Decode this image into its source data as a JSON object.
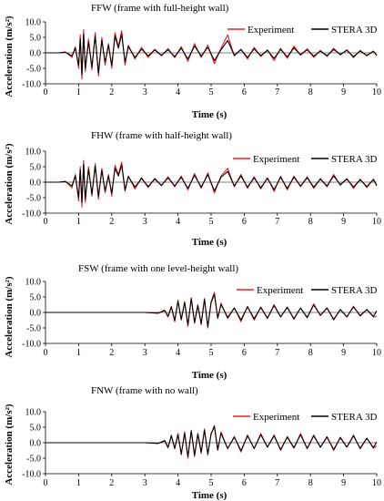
{
  "colors": {
    "experiment": "#e8202a",
    "stera": "#000000"
  },
  "chart_data": [
    {
      "type": "line",
      "title": "FFW (frame with full-height wall)",
      "xlabel": "Time (s)",
      "ylabel": "Acceleration (m/s²)",
      "xlim": [
        0,
        10
      ],
      "ylim": [
        -10,
        10
      ],
      "xticks": [
        "0",
        "1",
        "2",
        "3",
        "4",
        "5",
        "6",
        "7",
        "8",
        "9",
        "10"
      ],
      "yticks": [
        "10.0",
        "5.0",
        "0.0",
        "-5.0",
        "-10.0"
      ],
      "legend": {
        "position": "top-right"
      },
      "series": [
        {
          "name": "Experiment",
          "color": "#e8202a",
          "x": [
            0,
            0.4,
            0.6,
            0.8,
            0.9,
            1.0,
            1.05,
            1.1,
            1.15,
            1.2,
            1.3,
            1.4,
            1.5,
            1.6,
            1.7,
            1.8,
            1.9,
            2.0,
            2.1,
            2.2,
            2.3,
            2.4,
            2.5,
            2.7,
            2.9,
            3.1,
            3.3,
            3.5,
            3.7,
            3.9,
            4.1,
            4.3,
            4.5,
            4.7,
            4.9,
            5.1,
            5.3,
            5.5,
            5.7,
            5.9,
            6.1,
            6.3,
            6.5,
            6.7,
            6.9,
            7.1,
            7.3,
            7.5,
            7.7,
            7.9,
            8.1,
            8.3,
            8.5,
            8.7,
            8.9,
            9.1,
            9.3,
            9.5,
            9.7,
            9.9,
            10
          ],
          "y": [
            0,
            0,
            0.3,
            -1.5,
            2.0,
            -5.0,
            5.8,
            -8.5,
            7.5,
            -6.0,
            4.5,
            -5.5,
            6.5,
            -7.5,
            5.0,
            -4.0,
            3.0,
            -5.0,
            6.5,
            2.0,
            7.2,
            -4.0,
            2.5,
            -2.0,
            1.8,
            -1.5,
            1.2,
            -1.0,
            1.4,
            -1.6,
            2.0,
            -2.8,
            3.0,
            -1.5,
            2.5,
            -3.5,
            1.5,
            5.8,
            -1.0,
            1.2,
            -2.0,
            1.8,
            -1.2,
            1.0,
            -2.5,
            1.5,
            -1.8,
            2.2,
            -0.8,
            1.3,
            -1.5,
            0.8,
            -1.2,
            1.5,
            -0.7,
            1.0,
            -1.6,
            0.8,
            -1.0,
            0.6,
            -1.0
          ]
        },
        {
          "name": "STERA 3D",
          "color": "#000000",
          "x": [
            0,
            0.4,
            0.6,
            0.8,
            0.9,
            1.0,
            1.05,
            1.1,
            1.15,
            1.2,
            1.3,
            1.4,
            1.5,
            1.6,
            1.7,
            1.8,
            1.9,
            2.0,
            2.1,
            2.2,
            2.3,
            2.4,
            2.5,
            2.7,
            2.9,
            3.1,
            3.3,
            3.5,
            3.7,
            3.9,
            4.1,
            4.3,
            4.5,
            4.7,
            4.9,
            5.1,
            5.3,
            5.5,
            5.7,
            5.9,
            6.1,
            6.3,
            6.5,
            6.7,
            6.9,
            7.1,
            7.3,
            7.5,
            7.7,
            7.9,
            8.1,
            8.3,
            8.5,
            8.7,
            8.9,
            9.1,
            9.3,
            9.5,
            9.7,
            9.9,
            10
          ],
          "y": [
            0,
            0,
            0.2,
            -1.0,
            1.5,
            -4.0,
            4.5,
            -7.0,
            6.0,
            -5.0,
            3.5,
            -4.5,
            5.5,
            -6.5,
            4.0,
            -3.0,
            2.5,
            -4.0,
            5.5,
            1.5,
            6.0,
            -3.0,
            2.0,
            -1.5,
            1.2,
            -1.0,
            0.9,
            -0.8,
            1.0,
            -1.2,
            1.5,
            -2.0,
            2.2,
            -1.0,
            1.8,
            -2.5,
            1.0,
            4.0,
            -0.8,
            1.0,
            -1.5,
            1.3,
            -0.9,
            0.8,
            -1.8,
            1.1,
            -1.3,
            1.6,
            -0.6,
            1.0,
            -1.1,
            0.6,
            -0.9,
            1.1,
            -0.5,
            0.8,
            -1.2,
            0.6,
            -0.8,
            0.5,
            -0.8
          ]
        }
      ]
    },
    {
      "type": "line",
      "title": "FHW (frame with half-height wall)",
      "xlabel": "Time (s)",
      "ylabel": "Acceleration (m/s²)",
      "xlim": [
        0,
        10
      ],
      "ylim": [
        -10,
        10
      ],
      "xticks": [
        "0",
        "1",
        "2",
        "3",
        "4",
        "5",
        "6",
        "7",
        "8",
        "9",
        "10"
      ],
      "yticks": [
        "10.0",
        "5.0",
        "0.0",
        "-5.0",
        "-10.0"
      ],
      "legend": {
        "position": "top-right"
      },
      "series": [
        {
          "name": "Experiment",
          "color": "#e8202a",
          "x": [
            0,
            0.4,
            0.6,
            0.8,
            0.9,
            1.0,
            1.05,
            1.1,
            1.15,
            1.2,
            1.3,
            1.4,
            1.5,
            1.6,
            1.7,
            1.8,
            1.9,
            2.0,
            2.1,
            2.2,
            2.3,
            2.4,
            2.5,
            2.7,
            2.9,
            3.1,
            3.3,
            3.5,
            3.7,
            3.9,
            4.1,
            4.3,
            4.5,
            4.7,
            4.9,
            5.1,
            5.3,
            5.5,
            5.7,
            5.9,
            6.1,
            6.3,
            6.5,
            6.7,
            6.9,
            7.1,
            7.3,
            7.5,
            7.7,
            7.9,
            8.1,
            8.3,
            8.5,
            8.7,
            8.9,
            9.1,
            9.3,
            9.5,
            9.7,
            9.9,
            10
          ],
          "y": [
            0,
            0,
            0.3,
            -1.8,
            2.5,
            -6.0,
            5.0,
            -8.0,
            7.0,
            -6.5,
            5.0,
            -4.5,
            6.0,
            -5.5,
            4.5,
            -3.5,
            2.5,
            -4.5,
            5.5,
            2.5,
            6.5,
            -3.0,
            2.0,
            -2.2,
            1.5,
            -1.8,
            1.3,
            -1.2,
            1.8,
            -1.5,
            2.0,
            -2.5,
            2.8,
            -2.0,
            3.0,
            -3.5,
            2.0,
            4.5,
            -1.5,
            2.5,
            -2.0,
            1.8,
            -2.2,
            1.5,
            -3.0,
            2.0,
            -2.5,
            2.0,
            -1.5,
            1.8,
            -2.0,
            1.2,
            -1.5,
            2.5,
            -1.0,
            1.2,
            -2.0,
            1.0,
            -1.8,
            1.0,
            -1.2
          ]
        },
        {
          "name": "STERA 3D",
          "color": "#000000",
          "x": [
            0,
            0.4,
            0.6,
            0.8,
            0.9,
            1.0,
            1.05,
            1.1,
            1.15,
            1.2,
            1.3,
            1.4,
            1.5,
            1.6,
            1.7,
            1.8,
            1.9,
            2.0,
            2.1,
            2.2,
            2.3,
            2.4,
            2.5,
            2.7,
            2.9,
            3.1,
            3.3,
            3.5,
            3.7,
            3.9,
            4.1,
            4.3,
            4.5,
            4.7,
            4.9,
            5.1,
            5.3,
            5.5,
            5.7,
            5.9,
            6.1,
            6.3,
            6.5,
            6.7,
            6.9,
            7.1,
            7.3,
            7.5,
            7.7,
            7.9,
            8.1,
            8.3,
            8.5,
            8.7,
            8.9,
            9.1,
            9.3,
            9.5,
            9.7,
            9.9,
            10
          ],
          "y": [
            0,
            0,
            0.2,
            -1.2,
            2.0,
            -5.0,
            4.0,
            -6.5,
            5.8,
            -5.5,
            4.2,
            -3.8,
            5.2,
            -4.5,
            3.8,
            -2.8,
            2.0,
            -3.5,
            4.5,
            2.0,
            5.5,
            -2.5,
            1.8,
            -1.6,
            1.2,
            -1.4,
            1.0,
            -1.0,
            1.4,
            -1.2,
            1.6,
            -2.0,
            2.2,
            -1.6,
            2.4,
            -2.8,
            1.6,
            3.5,
            -1.2,
            2.0,
            -1.6,
            1.4,
            -1.8,
            1.2,
            -2.4,
            1.6,
            -2.0,
            1.6,
            -1.2,
            1.4,
            -1.6,
            1.0,
            -1.2,
            2.0,
            -0.8,
            1.0,
            -1.6,
            0.8,
            -1.4,
            0.8,
            -1.0
          ]
        }
      ]
    },
    {
      "type": "line",
      "title": "FSW (frame with one level-height wall)",
      "xlabel": "Time (s)",
      "ylabel": "Acceleration (m/s²)",
      "xlim": [
        0,
        10
      ],
      "ylim": [
        -10,
        10
      ],
      "xticks": [
        "0",
        "1",
        "2",
        "3",
        "4",
        "5",
        "6",
        "7",
        "8",
        "9",
        "10"
      ],
      "yticks": [
        "10.0",
        "5.0",
        "0.0",
        "-5.0",
        "-10.0"
      ],
      "legend": {
        "position": "top-right"
      },
      "series": [
        {
          "name": "Experiment",
          "color": "#e8202a",
          "x": [
            0,
            3.0,
            3.4,
            3.6,
            3.7,
            3.8,
            3.9,
            4.0,
            4.1,
            4.2,
            4.3,
            4.4,
            4.5,
            4.6,
            4.7,
            4.8,
            4.9,
            5.0,
            5.1,
            5.2,
            5.3,
            5.5,
            5.7,
            5.9,
            6.1,
            6.3,
            6.5,
            6.7,
            6.9,
            7.1,
            7.3,
            7.5,
            7.7,
            7.9,
            8.1,
            8.3,
            8.5,
            8.7,
            8.9,
            9.1,
            9.3,
            9.5,
            9.7,
            9.9,
            10
          ],
          "y": [
            0,
            0,
            -0.3,
            0.8,
            -1.5,
            2.0,
            -3.0,
            4.0,
            -2.5,
            3.5,
            -4.5,
            4.8,
            -3.5,
            2.5,
            -4.0,
            4.5,
            -5.0,
            3.5,
            6.5,
            -2.0,
            3.0,
            -2.0,
            1.5,
            -3.0,
            2.0,
            -2.5,
            1.8,
            -2.0,
            2.5,
            -1.5,
            1.8,
            -2.2,
            1.5,
            -1.8,
            2.8,
            -1.0,
            1.5,
            -2.5,
            1.0,
            -1.5,
            2.0,
            -1.2,
            1.0,
            -1.5,
            -1.2
          ]
        },
        {
          "name": "STERA 3D",
          "color": "#000000",
          "x": [
            0,
            3.0,
            3.4,
            3.6,
            3.7,
            3.8,
            3.9,
            4.0,
            4.1,
            4.2,
            4.3,
            4.4,
            4.5,
            4.6,
            4.7,
            4.8,
            4.9,
            5.0,
            5.1,
            5.2,
            5.3,
            5.5,
            5.7,
            5.9,
            6.1,
            6.3,
            6.5,
            6.7,
            6.9,
            7.1,
            7.3,
            7.5,
            7.7,
            7.9,
            8.1,
            8.3,
            8.5,
            8.7,
            8.9,
            9.1,
            9.3,
            9.5,
            9.7,
            9.9,
            10
          ],
          "y": [
            0,
            0,
            -0.2,
            0.6,
            -1.2,
            1.8,
            -2.6,
            3.6,
            -2.2,
            3.2,
            -4.0,
            4.4,
            -3.2,
            2.2,
            -3.6,
            4.2,
            -4.6,
            3.2,
            5.8,
            -1.8,
            2.6,
            -1.6,
            1.4,
            -2.4,
            1.8,
            -2.0,
            1.6,
            -1.8,
            2.2,
            -1.4,
            1.6,
            -2.0,
            1.4,
            -1.6,
            2.4,
            -0.9,
            1.4,
            -2.2,
            0.9,
            -1.4,
            1.8,
            -1.0,
            0.9,
            -1.3,
            0.5
          ]
        }
      ]
    },
    {
      "type": "line",
      "title": "FNW (frame with no wall)",
      "xlabel": "Time (s)",
      "ylabel": "Acceleration (m/s²)",
      "xlim": [
        0,
        10
      ],
      "ylim": [
        -10,
        10
      ],
      "xticks": [
        "0",
        "1",
        "2",
        "3",
        "4",
        "5",
        "6",
        "7",
        "8",
        "9",
        "10"
      ],
      "yticks": [
        "10.0",
        "5.0",
        "0.0",
        "-5.0",
        "-10.0"
      ],
      "legend": {
        "position": "top-right"
      },
      "series": [
        {
          "name": "Experiment",
          "color": "#e8202a",
          "x": [
            0,
            3.0,
            3.4,
            3.6,
            3.7,
            3.8,
            3.9,
            4.0,
            4.1,
            4.2,
            4.3,
            4.4,
            4.5,
            4.6,
            4.7,
            4.8,
            4.9,
            5.0,
            5.1,
            5.2,
            5.3,
            5.5,
            5.7,
            5.9,
            6.1,
            6.3,
            6.5,
            6.7,
            6.9,
            7.1,
            7.3,
            7.5,
            7.7,
            7.9,
            8.1,
            8.3,
            8.5,
            8.7,
            8.9,
            9.1,
            9.3,
            9.5,
            9.7,
            9.9,
            10
          ],
          "y": [
            0,
            0,
            -0.3,
            0.8,
            -1.8,
            2.5,
            -2.0,
            3.0,
            -4.0,
            3.5,
            -5.0,
            4.0,
            -4.5,
            3.0,
            -3.5,
            4.5,
            -4.0,
            3.0,
            5.0,
            -2.5,
            3.5,
            -2.0,
            2.0,
            -3.0,
            2.5,
            -2.0,
            3.0,
            -1.5,
            2.5,
            -2.5,
            2.0,
            -1.8,
            3.0,
            -2.0,
            2.5,
            -1.5,
            2.0,
            -2.5,
            1.8,
            -1.5,
            2.5,
            -2.0,
            1.5,
            -1.8,
            -1.0
          ]
        },
        {
          "name": "STERA 3D",
          "color": "#000000",
          "x": [
            0,
            3.0,
            3.4,
            3.6,
            3.7,
            3.8,
            3.9,
            4.0,
            4.1,
            4.2,
            4.3,
            4.4,
            4.5,
            4.6,
            4.7,
            4.8,
            4.9,
            5.0,
            5.1,
            5.2,
            5.3,
            5.5,
            5.7,
            5.9,
            6.1,
            6.3,
            6.5,
            6.7,
            6.9,
            7.1,
            7.3,
            7.5,
            7.7,
            7.9,
            8.1,
            8.3,
            8.5,
            8.7,
            8.9,
            9.1,
            9.3,
            9.5,
            9.7,
            9.9,
            10
          ],
          "y": [
            0,
            0,
            -0.2,
            0.6,
            -1.4,
            2.2,
            -1.8,
            2.6,
            -3.6,
            3.0,
            -4.5,
            3.8,
            -4.0,
            2.8,
            -3.0,
            4.0,
            -3.6,
            2.8,
            5.5,
            -2.2,
            3.0,
            -1.8,
            1.8,
            -2.6,
            2.2,
            -1.8,
            2.6,
            -1.4,
            2.2,
            -2.2,
            1.8,
            -1.6,
            2.6,
            -1.8,
            2.2,
            -1.4,
            1.8,
            -2.2,
            1.6,
            -1.4,
            2.2,
            -1.8,
            1.4,
            -1.6,
            0.3
          ]
        }
      ]
    }
  ]
}
